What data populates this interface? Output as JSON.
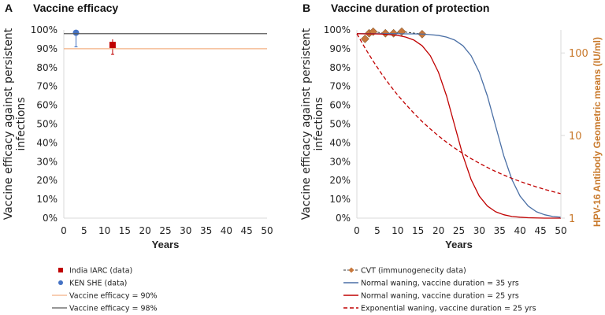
{
  "chart_data": [
    {
      "panel_letter": "A",
      "title": "Vaccine efficacy",
      "type": "scatter",
      "xlabel": "Years",
      "ylabel": "Vaccine efficacy against persistent infections",
      "xlim": [
        0,
        50
      ],
      "ylim": [
        0,
        100
      ],
      "xticks": [
        "0",
        "5",
        "10",
        "15",
        "20",
        "25",
        "30",
        "35",
        "40",
        "45",
        "50"
      ],
      "yticks": [
        "0%",
        "10%",
        "20%",
        "30%",
        "40%",
        "50%",
        "60%",
        "70%",
        "80%",
        "90%",
        "100%"
      ],
      "grid": false,
      "legend": "bottom",
      "series": [
        {
          "name": "India IARC (data)",
          "kind": "point",
          "marker": "square",
          "color": "#c00000",
          "x": 12,
          "y": 92,
          "err_low": 87,
          "err_high": 95
        },
        {
          "name": "KEN SHE (data)",
          "kind": "point",
          "marker": "circle",
          "color": "#4472c4",
          "x": 3,
          "y": 98.5,
          "err_low": 91,
          "err_high": 98.5
        },
        {
          "name": "Vaccine efficacy = 90%",
          "kind": "hline",
          "color": "#f4b183",
          "y": 90
        },
        {
          "name": "Vaccine efficacy = 98%",
          "kind": "hline",
          "color": "#595959",
          "y": 98
        }
      ]
    },
    {
      "panel_letter": "B",
      "title": "Vaccine duration of protection",
      "type": "line",
      "xlabel": "Years",
      "ylabel": "Vaccine efficacy against persistent infections",
      "y2label": "HPV-16 Antibody Geometric means (IU/ml)",
      "y2scale": "log",
      "y2ticks": [
        "1",
        "10",
        "100"
      ],
      "y2lim": [
        1,
        190
      ],
      "y2color": "#c8782a",
      "xlim": [
        0,
        50
      ],
      "ylim": [
        0,
        100
      ],
      "xticks": [
        "0",
        "5",
        "10",
        "15",
        "20",
        "25",
        "30",
        "35",
        "40",
        "45",
        "50"
      ],
      "yticks": [
        "0%",
        "10%",
        "20%",
        "30%",
        "40%",
        "50%",
        "60%",
        "70%",
        "80%",
        "90%",
        "100%"
      ],
      "grid": false,
      "legend": "bottom",
      "x": [
        0,
        2,
        4,
        6,
        8,
        10,
        12,
        14,
        16,
        18,
        20,
        22,
        24,
        26,
        28,
        30,
        32,
        34,
        36,
        38,
        40,
        42,
        44,
        46,
        48,
        50
      ],
      "series": [
        {
          "name": "CVT (immunogenecity data)",
          "axis": "y2",
          "style": "diamond-dashed",
          "color": "#c8783c",
          "points_x": [
            2,
            3,
            4,
            7,
            9,
            11,
            16
          ],
          "points_y": [
            148,
            173,
            181,
            173,
            173,
            181,
            169
          ]
        },
        {
          "name": "Normal waning, vaccine duration = 35 yrs",
          "style": "solid",
          "color": "#4a6fa5",
          "values": [
            98,
            98,
            98,
            98,
            98,
            98,
            97.9,
            97.9,
            97.8,
            97.5,
            97.1,
            96.2,
            94.6,
            91.6,
            86.3,
            77.5,
            64.8,
            49,
            33.2,
            20.5,
            11.7,
            6.4,
            3.4,
            1.8,
            0.9,
            0.5
          ]
        },
        {
          "name": "Normal waning, vaccine duration = 25 yrs",
          "style": "solid",
          "color": "#c00000",
          "values": [
            98,
            97.9,
            97.9,
            97.8,
            97.5,
            97.1,
            96.2,
            94.6,
            91.6,
            86.3,
            77.5,
            64.8,
            49,
            33.2,
            20.5,
            11.7,
            6.4,
            3.4,
            1.8,
            0.9,
            0.5,
            0.2,
            0.1,
            0,
            0,
            0
          ]
        },
        {
          "name": "Exponential waning, vaccine duration = 25 yrs",
          "style": "dashed",
          "color": "#c00000",
          "values": [
            98,
            90.4,
            83.4,
            76.9,
            70.9,
            65.4,
            60.4,
            55.7,
            51.3,
            47.4,
            43.7,
            40.3,
            37.2,
            34.3,
            31.6,
            29.2,
            26.9,
            24.8,
            22.9,
            21.1,
            19.5,
            18,
            16.6,
            15.3,
            14.1,
            13
          ]
        }
      ]
    }
  ]
}
